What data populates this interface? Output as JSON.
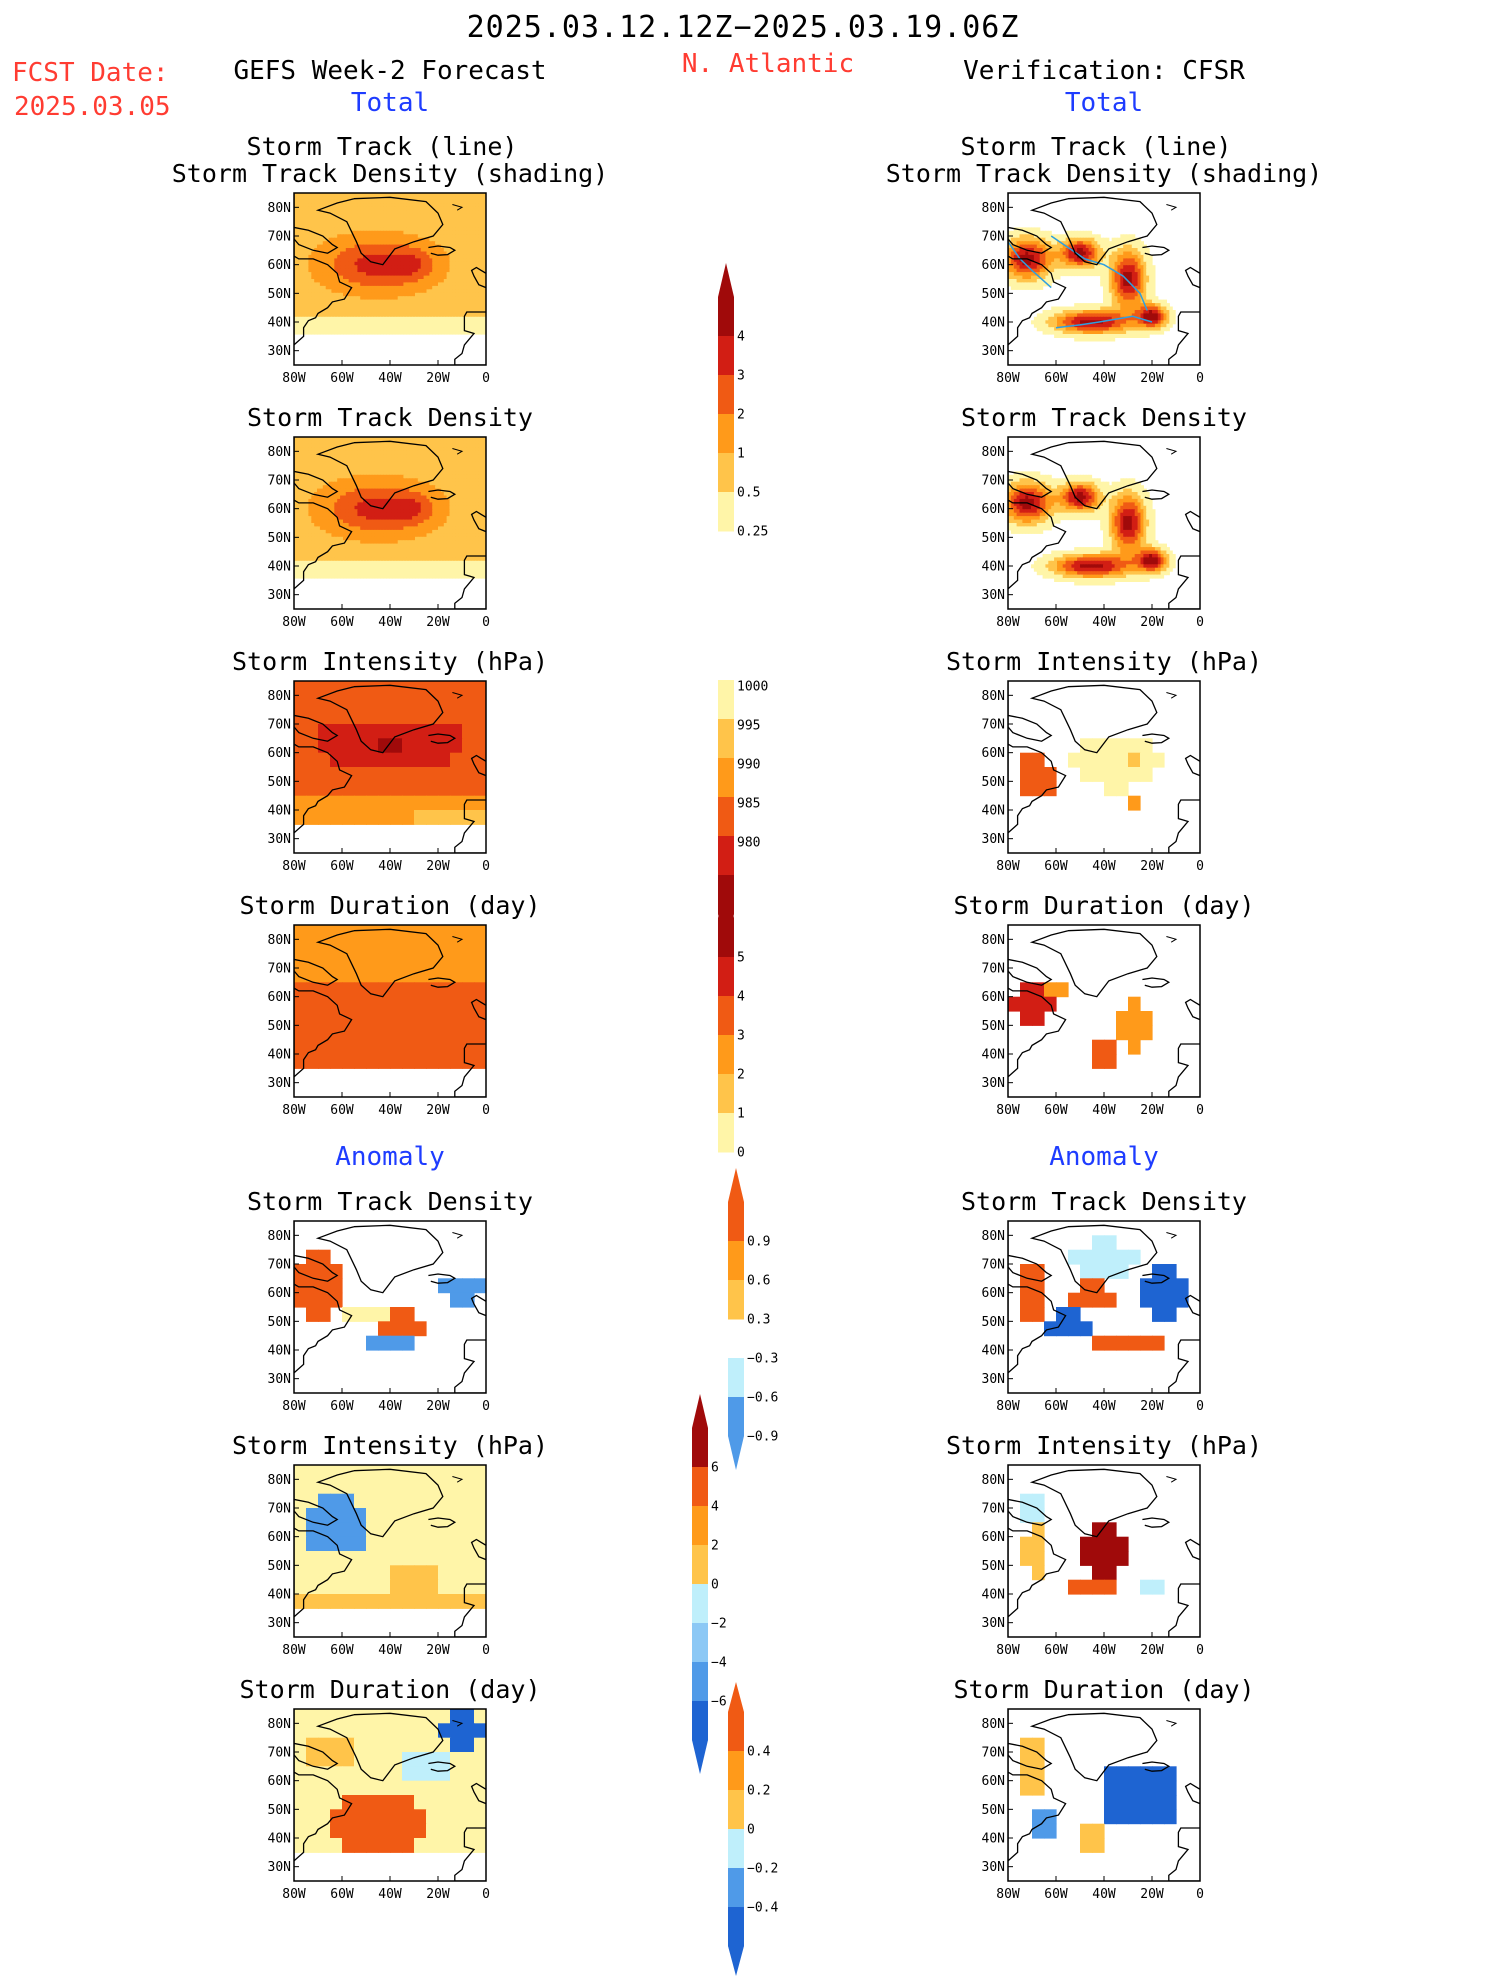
{
  "header": {
    "period": "2025.03.12.12Z−2025.03.19.06Z",
    "region": "N. Atlantic",
    "fcst_label": "FCST Date:",
    "fcst_date": "2025.03.05",
    "left_title": "GEFS Week-2 Forecast",
    "right_title": "Verification: CFSR",
    "total_left": "Total",
    "total_right": "Total",
    "anomaly_left": "Anomaly",
    "anomaly_right": "Anomaly"
  },
  "panel_titles": {
    "track_line": "Storm Track (line)",
    "track_density_shading": "Storm Track Density (shading)",
    "track_density": "Storm Track Density",
    "intensity": "Storm Intensity (hPa)",
    "duration": "Storm Duration (day)"
  },
  "axes": {
    "lat_labels": [
      "80N",
      "70N",
      "60N",
      "50N",
      "40N",
      "30N"
    ],
    "lon_labels": [
      "80W",
      "60W",
      "40W",
      "20W",
      "0"
    ]
  },
  "colorbars": {
    "density_total": [
      "4",
      "3",
      "2",
      "1",
      "0.5",
      "0.25"
    ],
    "intensity_total": [
      "1000",
      "995",
      "990",
      "985",
      "980"
    ],
    "duration_total": [
      "5",
      "4",
      "3",
      "2",
      "1",
      "0"
    ],
    "density_anom": [
      "0.9",
      "0.6",
      "0.3",
      "−0.3",
      "−0.6",
      "−0.9"
    ],
    "intensity_anom": [
      "6",
      "4",
      "2",
      "0",
      "−2",
      "−4",
      "−6"
    ],
    "duration_anom": [
      "0.4",
      "0.2",
      "0",
      "−0.2",
      "−0.4"
    ]
  },
  "colors": {
    "title_red": "#ff3c32",
    "label_blue": "#1e3cff",
    "pale_yellow": "#fff5a8",
    "light_orange": "#ffc44a",
    "orange": "#ff9a1a",
    "dark_orange": "#f05a14",
    "red": "#d21e14",
    "dark_red": "#a00a0a",
    "pale_blue": "#bfeffb",
    "light_blue": "#8cc8f5",
    "mid_blue": "#4f9ae8",
    "blue": "#1e64d2",
    "track_line": "#2f9fe0"
  }
}
